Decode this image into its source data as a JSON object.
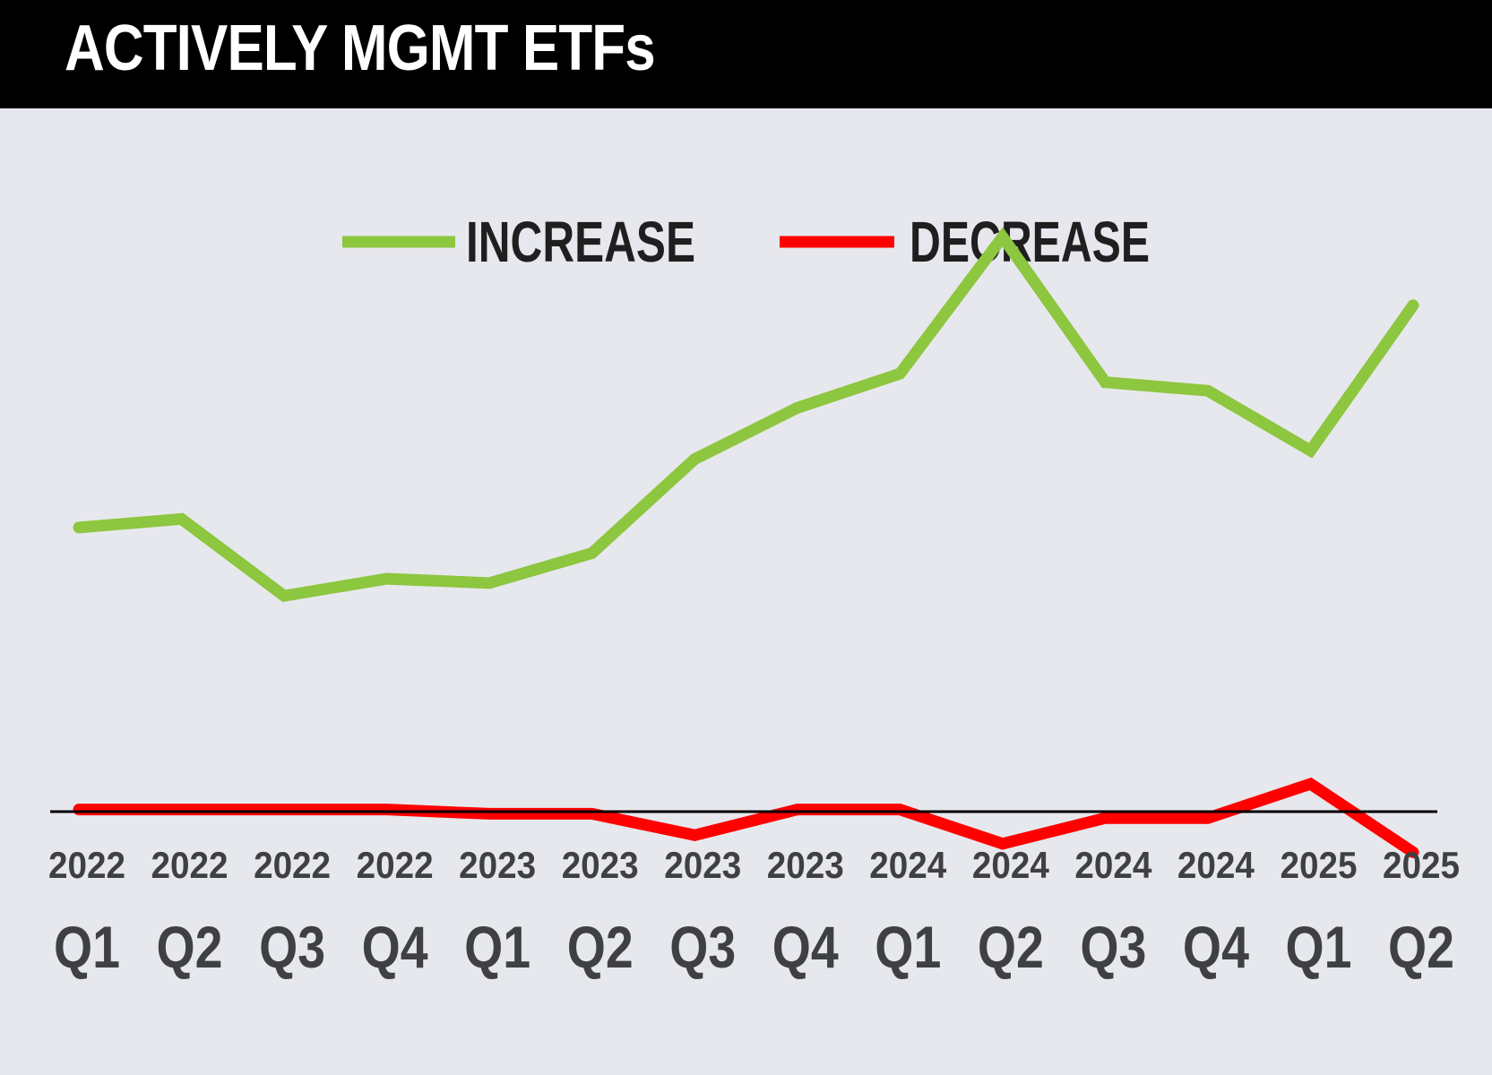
{
  "header": {
    "title": "ACTIVELY MGMT ETFs"
  },
  "colors": {
    "increase": "#8dc63f",
    "decrease": "#ff0000",
    "header_bg": "#000000",
    "background": "#e7e8ed",
    "axis": "#000000",
    "tick_text": "#3f4043"
  },
  "chart_data": {
    "type": "line",
    "title": "ACTIVELY MGMT ETFs",
    "x_year": [
      "2022",
      "2022",
      "2022",
      "2022",
      "2023",
      "2023",
      "2023",
      "2023",
      "2024",
      "2024",
      "2024",
      "2024",
      "2025",
      "2025"
    ],
    "x_quarter": [
      "Q1",
      "Q2",
      "Q3",
      "Q4",
      "Q1",
      "Q2",
      "Q3",
      "Q4",
      "Q1",
      "Q2",
      "Q3",
      "Q4",
      "Q1",
      "Q2"
    ],
    "series": [
      {
        "name": "INCREASE",
        "color": "#8dc63f",
        "values": [
          54,
          55,
          46,
          48,
          47.5,
          51,
          62,
          68,
          72,
          88,
          71,
          70,
          63,
          80
        ]
      },
      {
        "name": "DECREASE",
        "color": "#ff0000",
        "values": [
          21,
          21,
          21,
          21,
          20.5,
          20.5,
          18,
          21,
          21,
          17,
          20,
          20,
          24,
          16
        ]
      }
    ],
    "ylim": [
      0,
      100
    ],
    "grid": false,
    "legend": "top-center",
    "xlabel": "",
    "ylabel": ""
  }
}
